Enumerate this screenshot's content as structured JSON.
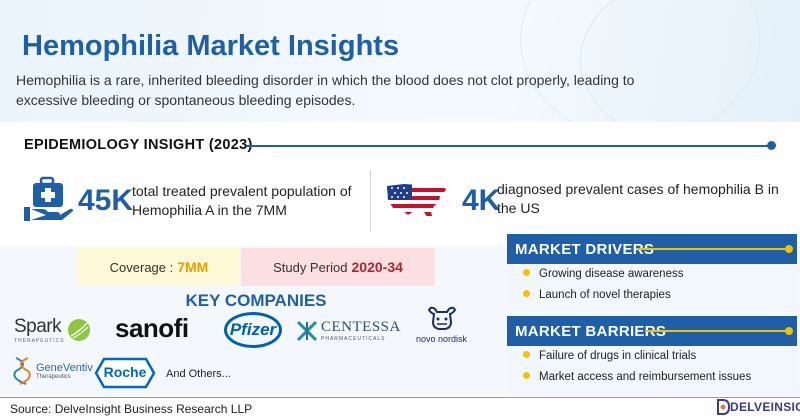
{
  "header": {
    "title": "Hemophilia Market Insights",
    "subtitle": "Hemophilia is a rare, inherited bleeding disorder in which the blood does not clot properly, leading to excessive bleeding or spontaneous bleeding episodes."
  },
  "epidemiology": {
    "title": "EPIDEMIOLOGY INSIGHT (2023)",
    "stat1": {
      "value": "45K",
      "text": "total treated prevalent population of Hemophilia A in the 7MM",
      "icon": "medical-kit-hand-icon"
    },
    "stat2": {
      "value": "4K",
      "text": "diagnosed prevalent cases of hemophilia B in the US",
      "icon": "us-flag-map-icon"
    }
  },
  "coverage": {
    "label": "Coverage :",
    "value": "7MM"
  },
  "study_period": {
    "label": "Study Period",
    "value": "2020-34"
  },
  "key_companies": {
    "title": "KEY COMPANIES",
    "logos": {
      "spark": "Spark",
      "spark_sub": "THERAPEUTICS",
      "sanofi": "sanofi",
      "pfizer": "Pfizer",
      "centessa": "CENTESSA",
      "centessa_sub": "PHARMACEUTICALS",
      "novo": "novo nordisk",
      "geneventiv": "GeneVentiv",
      "geneventiv_sub": "Therapeutics",
      "roche": "Roche"
    },
    "others": "And Others..."
  },
  "drivers": {
    "title": "MARKET DRIVERS",
    "items": [
      "Growing disease awareness",
      "Launch of novel therapies"
    ]
  },
  "barriers": {
    "title": "MARKET BARRIERS",
    "items": [
      "Failure of drugs in clinical trials",
      "Market access and reimbursement issues"
    ]
  },
  "footer": {
    "source": "Source: DelveInsight Business Research LLP",
    "brand": "DELVEINSIGHT"
  },
  "colors": {
    "primary": "#1f5fa8",
    "accent": "#f2c200",
    "coverage_bg": "#fdf8d5",
    "period_bg": "#fcdfe0"
  }
}
